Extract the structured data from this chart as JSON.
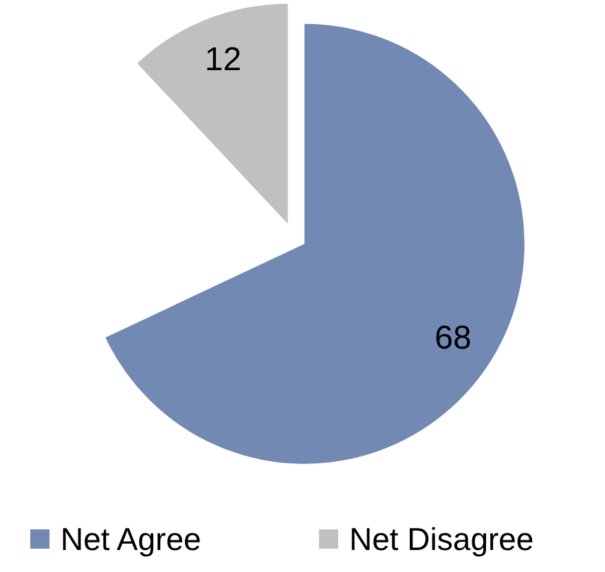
{
  "chart_data": {
    "type": "pie",
    "categories": [
      "Net Agree",
      "Net Disagree"
    ],
    "values": [
      68,
      12
    ],
    "colors": [
      "#7289b4",
      "#c0c0c0"
    ],
    "data_labels": true,
    "legend": "bottom"
  }
}
